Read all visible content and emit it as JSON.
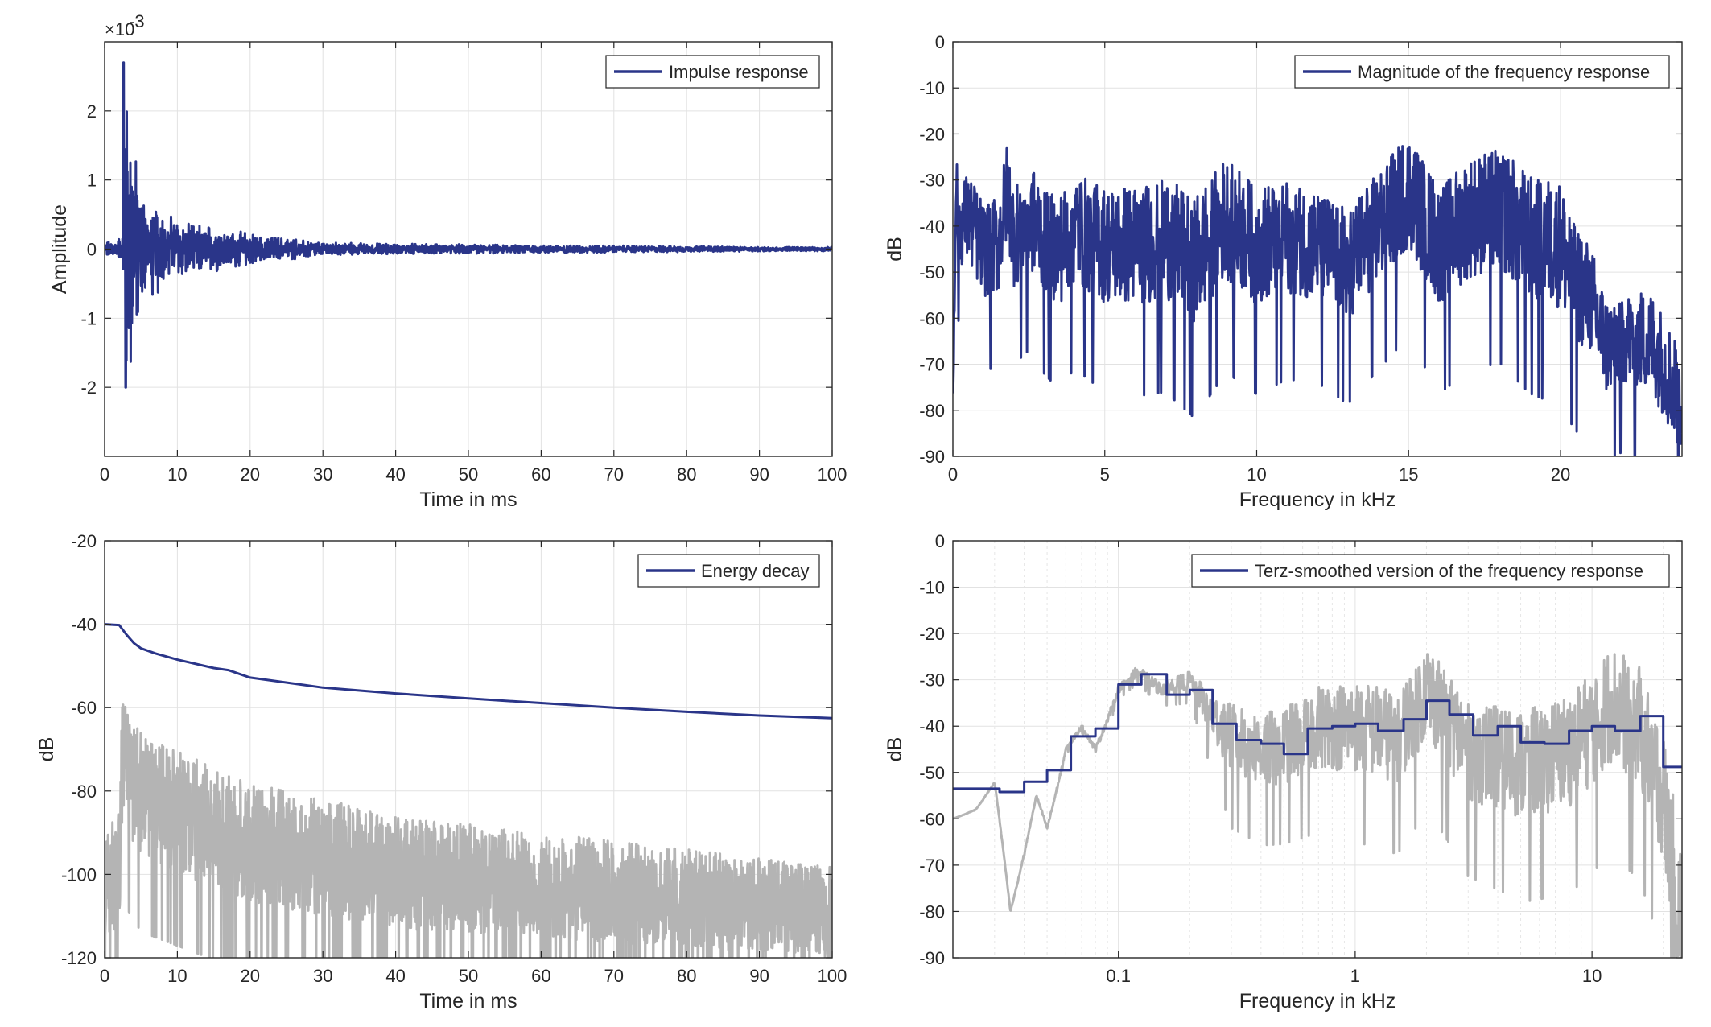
{
  "colors": {
    "series_main": "#2a3589",
    "series_raw": "#b4b4b4",
    "axes": "#262626",
    "grid": "#e2e2e2"
  },
  "chart_data": [
    {
      "id": "impulse",
      "type": "line",
      "xlabel": "Time in ms",
      "ylabel": "Amplitude",
      "exponent_label": "×10",
      "exponent_power": "-3",
      "xlim": [
        0,
        100
      ],
      "ylim": [
        -3,
        3
      ],
      "xscale": "linear",
      "xticks": [
        0,
        10,
        20,
        30,
        40,
        50,
        60,
        70,
        80,
        90,
        100
      ],
      "yticks": [
        -2,
        -1,
        0,
        1,
        2
      ],
      "grid": true,
      "legend_position": "top-right",
      "series": [
        {
          "name": "Impulse response",
          "color": "#2a3589",
          "description": "Mostly 0 before 2.5 ms, peak 2.7 at 2.6 ms, decaying oscillation",
          "x": [
            0,
            1,
            2,
            2.4,
            2.6,
            2.8,
            3.0,
            3.2,
            3.5,
            3.8,
            4.2,
            4.6,
            5.0,
            5.5,
            6,
            7,
            8,
            9,
            10,
            12,
            14,
            16,
            17,
            18,
            20,
            25,
            30,
            40,
            50,
            60,
            70,
            80,
            90,
            100
          ],
          "y": [
            0.05,
            0.05,
            0.1,
            -0.5,
            2.7,
            -1.8,
            2.0,
            -2.0,
            1.2,
            -1.4,
            0.9,
            -1.2,
            0.7,
            -0.6,
            0.6,
            -0.5,
            0.5,
            -0.4,
            0.4,
            -0.35,
            0.3,
            -0.3,
            0.4,
            -0.25,
            0.15,
            -0.1,
            0.08,
            -0.05,
            0.05,
            -0.04,
            0.03,
            -0.02,
            0.02,
            0.01
          ],
          "envelope": [
            [
              0,
              0.1
            ],
            [
              2.5,
              0.2
            ],
            [
              2.6,
              2.7
            ],
            [
              3.5,
              2.0
            ],
            [
              5,
              0.9
            ],
            [
              10,
              0.45
            ],
            [
              20,
              0.25
            ],
            [
              30,
              0.1
            ],
            [
              50,
              0.07
            ],
            [
              100,
              0.03
            ]
          ]
        }
      ]
    },
    {
      "id": "magnitude",
      "type": "line",
      "xlabel": "Frequency in kHz",
      "ylabel": "dB",
      "xlim": [
        0,
        24
      ],
      "ylim": [
        -90,
        0
      ],
      "xscale": "linear",
      "xticks": [
        0,
        5,
        10,
        15,
        20
      ],
      "yticks": [
        0,
        -10,
        -20,
        -30,
        -40,
        -50,
        -60,
        -70,
        -80,
        -90
      ],
      "grid": true,
      "legend_position": "top-right",
      "series": [
        {
          "name": "Magnitude of the frequency response",
          "color": "#2a3589",
          "x": [
            0,
            0.1,
            0.2,
            0.5,
            1.0,
            1.5,
            1.8,
            2.0,
            2.5,
            3.0,
            3.5,
            4.0,
            5.0,
            6.0,
            7.0,
            8.0,
            8.5,
            9.0,
            10.0,
            11.0,
            12.0,
            13.0,
            14.0,
            15.0,
            16.0,
            17.0,
            18.0,
            19.0,
            20.0,
            20.5,
            21.0,
            21.5,
            22.0,
            23.0,
            24.0
          ],
          "y": [
            -80,
            -30,
            -40,
            -38,
            -45,
            -44,
            -32,
            -42,
            -38,
            -42,
            -45,
            -40,
            -44,
            -44,
            -42,
            -47,
            -42,
            -38,
            -44,
            -42,
            -44,
            -48,
            -40,
            -32,
            -44,
            -38,
            -36,
            -42,
            -44,
            -52,
            -56,
            -66,
            -64,
            -65,
            -78
          ],
          "envelope": [
            [
              0,
              8
            ],
            [
              0.5,
              10
            ],
            [
              3,
              12
            ],
            [
              8,
              14
            ],
            [
              12,
              12
            ],
            [
              20,
              14
            ],
            [
              22,
              10
            ],
            [
              24,
              12
            ]
          ]
        }
      ]
    },
    {
      "id": "energy",
      "type": "line",
      "xlabel": "Time in ms",
      "ylabel": "dB",
      "xlim": [
        0,
        100
      ],
      "ylim": [
        -120,
        -20
      ],
      "xscale": "linear",
      "xticks": [
        0,
        10,
        20,
        30,
        40,
        50,
        60,
        70,
        80,
        90,
        100
      ],
      "yticks": [
        -20,
        -40,
        -60,
        -80,
        -100,
        -120
      ],
      "grid": true,
      "legend_position": "top-right",
      "series": [
        {
          "name": "Energy decay",
          "color": "#2a3589",
          "x": [
            0,
            2,
            3,
            4,
            5,
            7,
            10,
            15,
            17,
            20,
            30,
            40,
            50,
            60,
            70,
            80,
            90,
            100
          ],
          "y": [
            -40,
            -40.2,
            -42.5,
            -44.5,
            -45.8,
            -47,
            -48.5,
            -50.5,
            -51,
            -52.8,
            -55.2,
            -56.6,
            -57.8,
            -58.9,
            -60,
            -61,
            -61.9,
            -62.5
          ]
        },
        {
          "name": "",
          "color": "#b4b4b4",
          "x": [
            0,
            2,
            2.5,
            3,
            5,
            10,
            20,
            30,
            40,
            50,
            60,
            70,
            80,
            90,
            100
          ],
          "y": [
            -90,
            -85,
            -52,
            -60,
            -66,
            -70,
            -78,
            -82,
            -86,
            -88,
            -90,
            -92,
            -94,
            -96,
            -98
          ],
          "envelope": [
            [
              0,
              30
            ],
            [
              3,
              30
            ],
            [
              100,
              22
            ]
          ]
        }
      ]
    },
    {
      "id": "terz",
      "type": "line",
      "xlabel": "Frequency in kHz",
      "ylabel": "dB",
      "xlim": [
        0.02,
        24
      ],
      "ylim": [
        -90,
        0
      ],
      "xscale": "log",
      "xticks": [
        0.1,
        1,
        10
      ],
      "xtick_labels": [
        "0.1",
        "1",
        "10"
      ],
      "yticks": [
        0,
        -10,
        -20,
        -30,
        -40,
        -50,
        -60,
        -70,
        -80,
        -90
      ],
      "grid": true,
      "legend_position": "top-right",
      "series": [
        {
          "name": "Terz-smoothed version of the frequency response",
          "color": "#2a3589",
          "type": "step",
          "x": [
            0.02,
            0.0315,
            0.04,
            0.05,
            0.063,
            0.08,
            0.1,
            0.125,
            0.16,
            0.2,
            0.25,
            0.315,
            0.4,
            0.5,
            0.63,
            0.8,
            1.0,
            1.25,
            1.6,
            2.0,
            2.5,
            3.15,
            4.0,
            5.0,
            6.3,
            8.0,
            10.0,
            12.5,
            16.0,
            20.0,
            24.0
          ],
          "y": [
            -53.5,
            -54.2,
            -52,
            -49.5,
            -42.2,
            -40.5,
            -31,
            -28.8,
            -33.2,
            -32.2,
            -39.5,
            -43,
            -43.8,
            -46,
            -40.5,
            -40,
            -39.5,
            -41,
            -38.5,
            -34.5,
            -37.5,
            -42,
            -40,
            -43.5,
            -43.8,
            -41,
            -40,
            -41,
            -37.8,
            -48.8,
            -48.8
          ]
        },
        {
          "name": "",
          "color": "#b4b4b4",
          "x": [
            0.02,
            0.025,
            0.03,
            0.035,
            0.045,
            0.05,
            0.06,
            0.07,
            0.08,
            0.1,
            0.12,
            0.15,
            0.2,
            0.25,
            0.3,
            0.4,
            0.5,
            0.7,
            1.0,
            1.5,
            2.0,
            3.0,
            5.0,
            8.0,
            12.0,
            16.0,
            20.0,
            24.0
          ],
          "y": [
            -60,
            -58,
            -52,
            -80,
            -55,
            -62,
            -45,
            -40,
            -45,
            -32,
            -28,
            -32,
            -30,
            -38,
            -42,
            -45,
            -44,
            -40,
            -40,
            -42,
            -32,
            -45,
            -48,
            -45,
            -35,
            -40,
            -55,
            -85
          ],
          "envelope": [
            [
              0.02,
              0
            ],
            [
              0.2,
              2
            ],
            [
              0.3,
              8
            ],
            [
              1,
              10
            ],
            [
              5,
              12
            ],
            [
              20,
              14
            ],
            [
              24,
              20
            ]
          ]
        }
      ]
    }
  ]
}
